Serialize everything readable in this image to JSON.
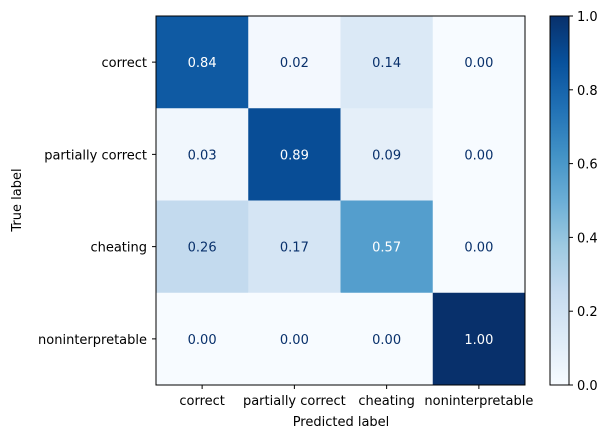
{
  "chart_data": {
    "type": "heatmap",
    "title": "",
    "xlabel": "Predicted label",
    "ylabel": "True label",
    "x_categories": [
      "correct",
      "partially correct",
      "cheating",
      "noninterpretable"
    ],
    "y_categories": [
      "correct",
      "partially correct",
      "cheating",
      "noninterpretable"
    ],
    "values": [
      [
        0.84,
        0.02,
        0.14,
        0.0
      ],
      [
        0.03,
        0.89,
        0.09,
        0.0
      ],
      [
        0.26,
        0.17,
        0.57,
        0.0
      ],
      [
        0.0,
        0.0,
        0.0,
        1.0
      ]
    ],
    "value_format": "0.00",
    "colormap": "Blues",
    "colorbar": {
      "range": [
        0.0,
        1.0
      ],
      "ticks": [
        "0.0",
        "0.2",
        "0.4",
        "0.6",
        "0.8",
        "1.0"
      ]
    },
    "grid": false
  }
}
